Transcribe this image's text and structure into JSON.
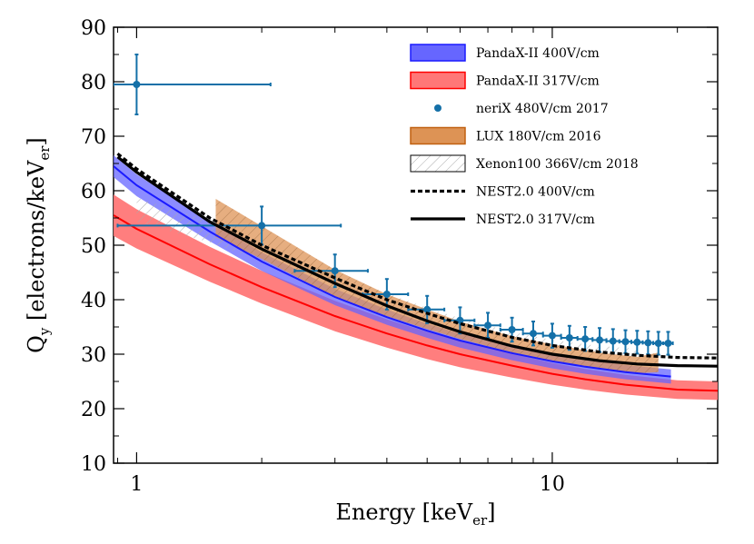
{
  "chart_data": {
    "type": "line",
    "x_scale": "log",
    "xlim": [
      0.88,
      25
    ],
    "ylim": [
      10,
      90
    ],
    "x_ticks": [
      1,
      10
    ],
    "x_tick_labels": [
      "1",
      "10"
    ],
    "y_ticks": [
      10,
      20,
      30,
      40,
      50,
      60,
      70,
      80,
      90
    ],
    "y_tick_labels": [
      "10",
      "20",
      "30",
      "40",
      "50",
      "60",
      "70",
      "80",
      "90"
    ],
    "xlabel_main": "Energy [keV",
    "xlabel_sub": "er",
    "xlabel_end": "]",
    "ylabel_main": "Q",
    "ylabel_sub": "y",
    "ylabel_mid": " [electrons/keV",
    "ylabel_sub2": "er",
    "ylabel_end": "]",
    "legend_position": "top-right",
    "series": [
      {
        "name": "PandaX-II 400V/cm",
        "kind": "band",
        "fill": "#6666ff",
        "line": "#1a1aff",
        "x": [
          0.88,
          1.0,
          1.5,
          2.0,
          3.0,
          4.0,
          5.0,
          6.0,
          8.0,
          10.0,
          12.0,
          15.0,
          19.3
        ],
        "center": [
          64.5,
          61.0,
          52.5,
          47.0,
          40.5,
          36.8,
          34.3,
          32.5,
          30.2,
          28.7,
          27.7,
          26.7,
          25.9
        ],
        "half_width": [
          2.0,
          2.0,
          1.8,
          1.7,
          1.5,
          1.4,
          1.3,
          1.3,
          1.3,
          1.3,
          1.3,
          1.3,
          1.3
        ]
      },
      {
        "name": "PandaX-II 317V/cm",
        "kind": "band",
        "fill": "#ff7777",
        "line": "#ff0000",
        "x": [
          0.88,
          1.0,
          1.5,
          2.0,
          3.0,
          4.0,
          5.0,
          6.0,
          8.0,
          10.0,
          12.0,
          15.0,
          20.0,
          25.0
        ],
        "center": [
          55.5,
          53.0,
          46.5,
          42.3,
          37.0,
          33.8,
          31.6,
          30.0,
          27.9,
          26.4,
          25.4,
          24.4,
          23.5,
          23.3
        ],
        "half_width": [
          3.8,
          3.6,
          3.2,
          3.0,
          2.8,
          2.6,
          2.5,
          2.4,
          2.2,
          2.0,
          1.9,
          1.8,
          1.7,
          1.7
        ]
      },
      {
        "name": "neriX 480V/cm 2017",
        "kind": "points",
        "color": "#1470a8",
        "x": [
          1.0,
          2.0,
          3.0,
          4.0,
          5.0,
          6.0,
          7.0,
          8.0,
          9.0,
          10.0,
          11.0,
          12.0,
          13.0,
          14.0,
          15.0,
          16.0,
          17.0,
          18.0,
          19.0
        ],
        "y": [
          79.5,
          53.6,
          45.3,
          41.0,
          38.2,
          36.2,
          35.3,
          34.5,
          33.8,
          33.4,
          33.0,
          32.8,
          32.6,
          32.4,
          32.3,
          32.2,
          32.1,
          32.0,
          32.0
        ],
        "y_err": [
          5.5,
          3.5,
          3.0,
          2.8,
          2.5,
          2.4,
          2.3,
          2.2,
          2.2,
          2.2,
          2.2,
          2.2,
          2.2,
          2.2,
          2.1,
          2.1,
          2.1,
          2.1,
          2.1
        ],
        "x_err_low": [
          0.12,
          1.1,
          0.6,
          0.5,
          0.5,
          0.5,
          0.5,
          0.5,
          0.5,
          0.5,
          0.5,
          0.5,
          0.5,
          0.5,
          0.5,
          0.5,
          0.5,
          0.5,
          0.5
        ],
        "x_err_high": [
          1.1,
          1.1,
          0.6,
          0.5,
          0.5,
          0.5,
          0.5,
          0.5,
          0.5,
          0.5,
          0.5,
          0.5,
          0.5,
          0.5,
          0.5,
          0.5,
          0.5,
          0.5,
          0.5
        ]
      },
      {
        "name": "LUX 180V/cm 2016",
        "kind": "band",
        "fill": "#dd9355",
        "line": "#c06010",
        "hatch": true,
        "x": [
          1.55,
          2.0,
          3.0,
          4.0,
          5.0,
          6.0,
          8.0,
          10.0,
          13.0,
          16.0,
          18.0
        ],
        "center": [
          55.0,
          50.5,
          43.0,
          39.0,
          36.4,
          34.4,
          31.8,
          30.3,
          28.8,
          28.0,
          28.5
        ],
        "half_width": [
          3.5,
          3.0,
          2.5,
          2.0,
          1.8,
          1.6,
          1.5,
          1.5,
          1.5,
          1.5,
          1.8
        ]
      },
      {
        "name": "Xenon100 366V/cm 2018",
        "kind": "band",
        "fill": "none",
        "line": "#999999",
        "hatch": true,
        "x": [
          1.0,
          1.5,
          2.0,
          3.0,
          4.0,
          5.0,
          6.0,
          8.0,
          10.0,
          13.0,
          16.0
        ],
        "center": [
          56.5,
          52.5,
          49.0,
          43.0,
          39.6,
          37.0,
          35.2,
          32.8,
          31.4,
          30.3,
          29.8
        ],
        "half_width": [
          2.2,
          2.0,
          1.9,
          1.8,
          1.6,
          1.5,
          1.4,
          1.3,
          1.2,
          1.2,
          1.2
        ]
      },
      {
        "name": "NEST2.0 400V/cm",
        "kind": "line",
        "dash": true,
        "color": "#000000",
        "x": [
          0.9,
          1.0,
          1.5,
          2.0,
          3.0,
          4.0,
          5.0,
          6.0,
          8.0,
          10.0,
          13.0,
          16.0,
          20.0,
          25.0
        ],
        "y": [
          66.8,
          64.0,
          55.0,
          50.0,
          44.0,
          40.0,
          37.5,
          35.6,
          33.1,
          31.6,
          30.4,
          29.8,
          29.4,
          29.3
        ]
      },
      {
        "name": "NEST2.0 317V/cm",
        "kind": "line",
        "dash": false,
        "color": "#000000",
        "x": [
          0.9,
          1.0,
          1.5,
          2.0,
          3.0,
          4.0,
          5.0,
          6.0,
          8.0,
          10.0,
          13.0,
          16.0,
          20.0,
          25.0
        ],
        "y": [
          66.2,
          63.4,
          54.3,
          49.3,
          43.0,
          38.9,
          36.1,
          34.1,
          31.5,
          30.0,
          28.8,
          28.2,
          27.9,
          27.8
        ]
      }
    ]
  }
}
